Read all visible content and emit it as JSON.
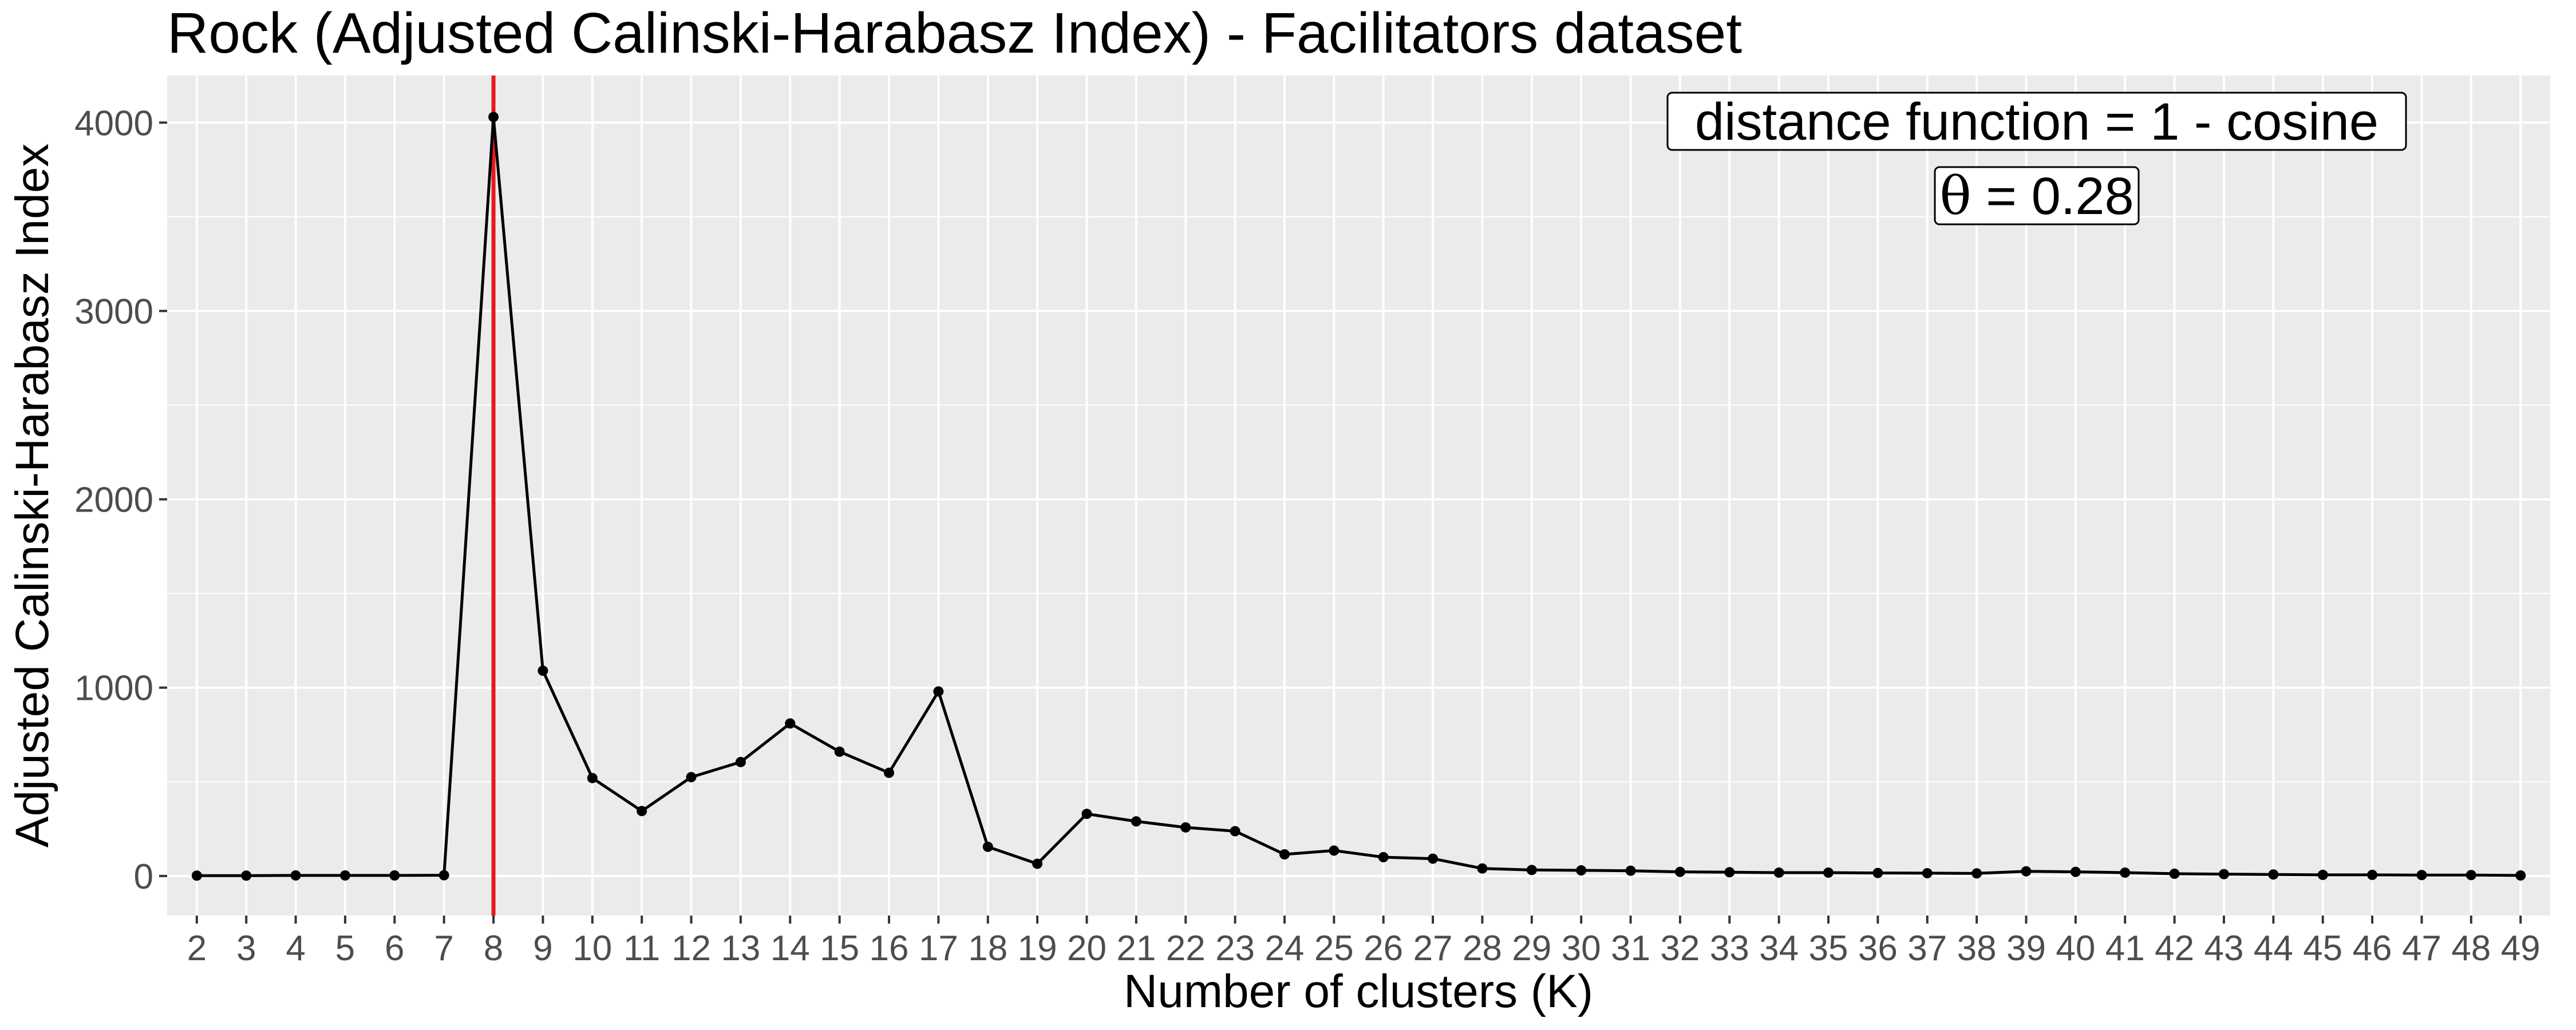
{
  "chart_data": {
    "type": "line",
    "title": "Rock (Adjusted Calinski-Harabasz Index) - Facilitators dataset",
    "xlabel": "Number of clusters (K)",
    "ylabel": "Adjusted Calinski-Harabasz Index",
    "x": [
      2,
      3,
      4,
      5,
      6,
      7,
      8,
      9,
      10,
      11,
      12,
      13,
      14,
      15,
      16,
      17,
      18,
      19,
      20,
      21,
      22,
      23,
      24,
      25,
      26,
      27,
      28,
      29,
      30,
      31,
      32,
      33,
      34,
      35,
      36,
      37,
      38,
      39,
      40,
      41,
      42,
      43,
      44,
      45,
      46,
      47,
      48,
      49
    ],
    "series": [
      {
        "values": [
          2,
          2,
          3,
          3,
          3,
          4,
          4030,
          1090,
          520,
          345,
          525,
          605,
          810,
          660,
          548,
          980,
          155,
          65,
          330,
          290,
          258,
          238,
          115,
          135,
          100,
          92,
          40,
          32,
          30,
          28,
          22,
          20,
          18,
          18,
          16,
          15,
          14,
          25,
          22,
          18,
          12,
          10,
          8,
          6,
          6,
          5,
          5,
          3
        ],
        "color": "#000000"
      }
    ],
    "xlim": [
      1.4,
      49.6
    ],
    "ylim": [
      -210,
      4250
    ],
    "y_ticks": [
      0,
      1000,
      2000,
      3000,
      4000
    ],
    "x_ticks": [
      2,
      3,
      4,
      5,
      6,
      7,
      8,
      9,
      10,
      11,
      12,
      13,
      14,
      15,
      16,
      17,
      18,
      19,
      20,
      21,
      22,
      23,
      24,
      25,
      26,
      27,
      28,
      29,
      30,
      31,
      32,
      33,
      34,
      35,
      36,
      37,
      38,
      39,
      40,
      41,
      42,
      43,
      44,
      45,
      46,
      47,
      48,
      49
    ],
    "vline": {
      "x": 8,
      "color": "#e41a1c"
    },
    "annotations": [
      {
        "text": "distance function = 1 -  cosine"
      },
      {
        "symbol": "θ",
        "text": " = 0.28"
      }
    ],
    "grid": true,
    "legend": "none",
    "colors": {
      "panel_bg": "#ebebeb",
      "grid": "#ffffff",
      "line": "#000000",
      "highlight": "#e41a1c"
    }
  }
}
